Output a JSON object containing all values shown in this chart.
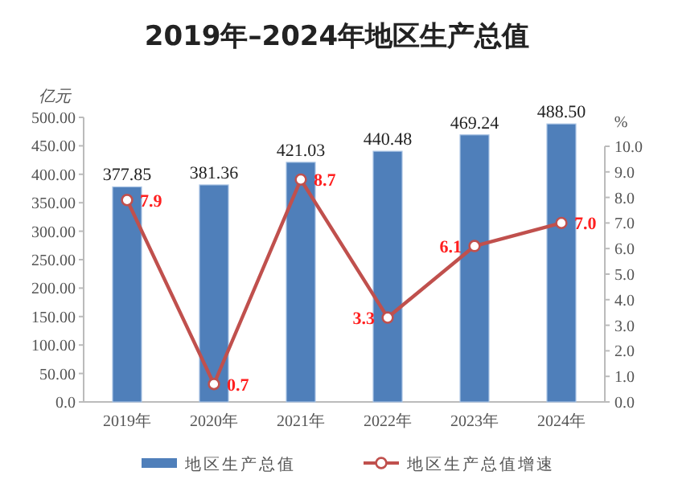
{
  "chart_data": {
    "type": "bar",
    "title": "2019年–2024年地区生产总值",
    "ylabel": "亿元",
    "y2label": "%",
    "categories": [
      "2019年",
      "2020年",
      "2021年",
      "2022年",
      "2023年",
      "2024年"
    ],
    "series": [
      {
        "name": "地区生产总值",
        "color": "#4f7fba",
        "values": [
          377.85,
          381.36,
          421.03,
          440.48,
          469.24,
          488.5
        ],
        "value_labels": [
          "377.85",
          "381.36",
          "421.03",
          "440.48",
          "469.24",
          "488.50"
        ]
      },
      {
        "name": "地区生产总值增速",
        "type": "line",
        "axis": "y2",
        "color": "#c0504d",
        "marker": "circle",
        "values": [
          7.9,
          0.7,
          8.7,
          3.3,
          6.1,
          7.0
        ],
        "value_labels": [
          "7.9",
          "0.7",
          "8.7",
          "3.3",
          "6.1",
          "7.0"
        ]
      }
    ],
    "ylim": [
      0,
      500
    ],
    "yticks": [
      {
        "value": 0,
        "label": "0.0"
      },
      {
        "value": 50,
        "label": "50.00"
      },
      {
        "value": 100,
        "label": "100.00"
      },
      {
        "value": 150,
        "label": "150.00"
      },
      {
        "value": 200,
        "label": "200.00"
      },
      {
        "value": 250,
        "label": "250.00"
      },
      {
        "value": 300,
        "label": "300.00"
      },
      {
        "value": 350,
        "label": "350.00"
      },
      {
        "value": 400,
        "label": "400.00"
      },
      {
        "value": 450,
        "label": "450.00"
      },
      {
        "value": 500,
        "label": "500.00"
      }
    ],
    "y2lim": [
      0,
      10
    ],
    "y2ticks": [
      {
        "value": 0,
        "label": "0.0"
      },
      {
        "value": 1,
        "label": "1.0"
      },
      {
        "value": 2,
        "label": "2.0"
      },
      {
        "value": 3,
        "label": "3.0"
      },
      {
        "value": 4,
        "label": "4.0"
      },
      {
        "value": 5,
        "label": "5.0"
      },
      {
        "value": 6,
        "label": "6.0"
      },
      {
        "value": 7,
        "label": "7.0"
      },
      {
        "value": 8,
        "label": "8.0"
      },
      {
        "value": 9,
        "label": "9.0"
      },
      {
        "value": 10,
        "label": "10.0"
      }
    ],
    "legend": "bottom",
    "grid": false
  }
}
